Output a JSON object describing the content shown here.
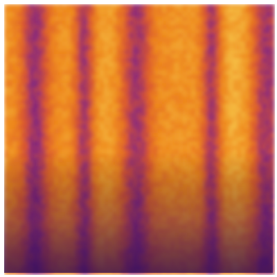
{
  "image": {
    "description_kind": "heatmap-texture",
    "colormap": "inferno",
    "colors": {
      "low": "#4a1a78",
      "mid_low": "#8b2a7a",
      "mid": "#d9552f",
      "mid_high": "#ef8a1e",
      "high": "#f6c64a",
      "border": "#ffffff"
    }
  }
}
